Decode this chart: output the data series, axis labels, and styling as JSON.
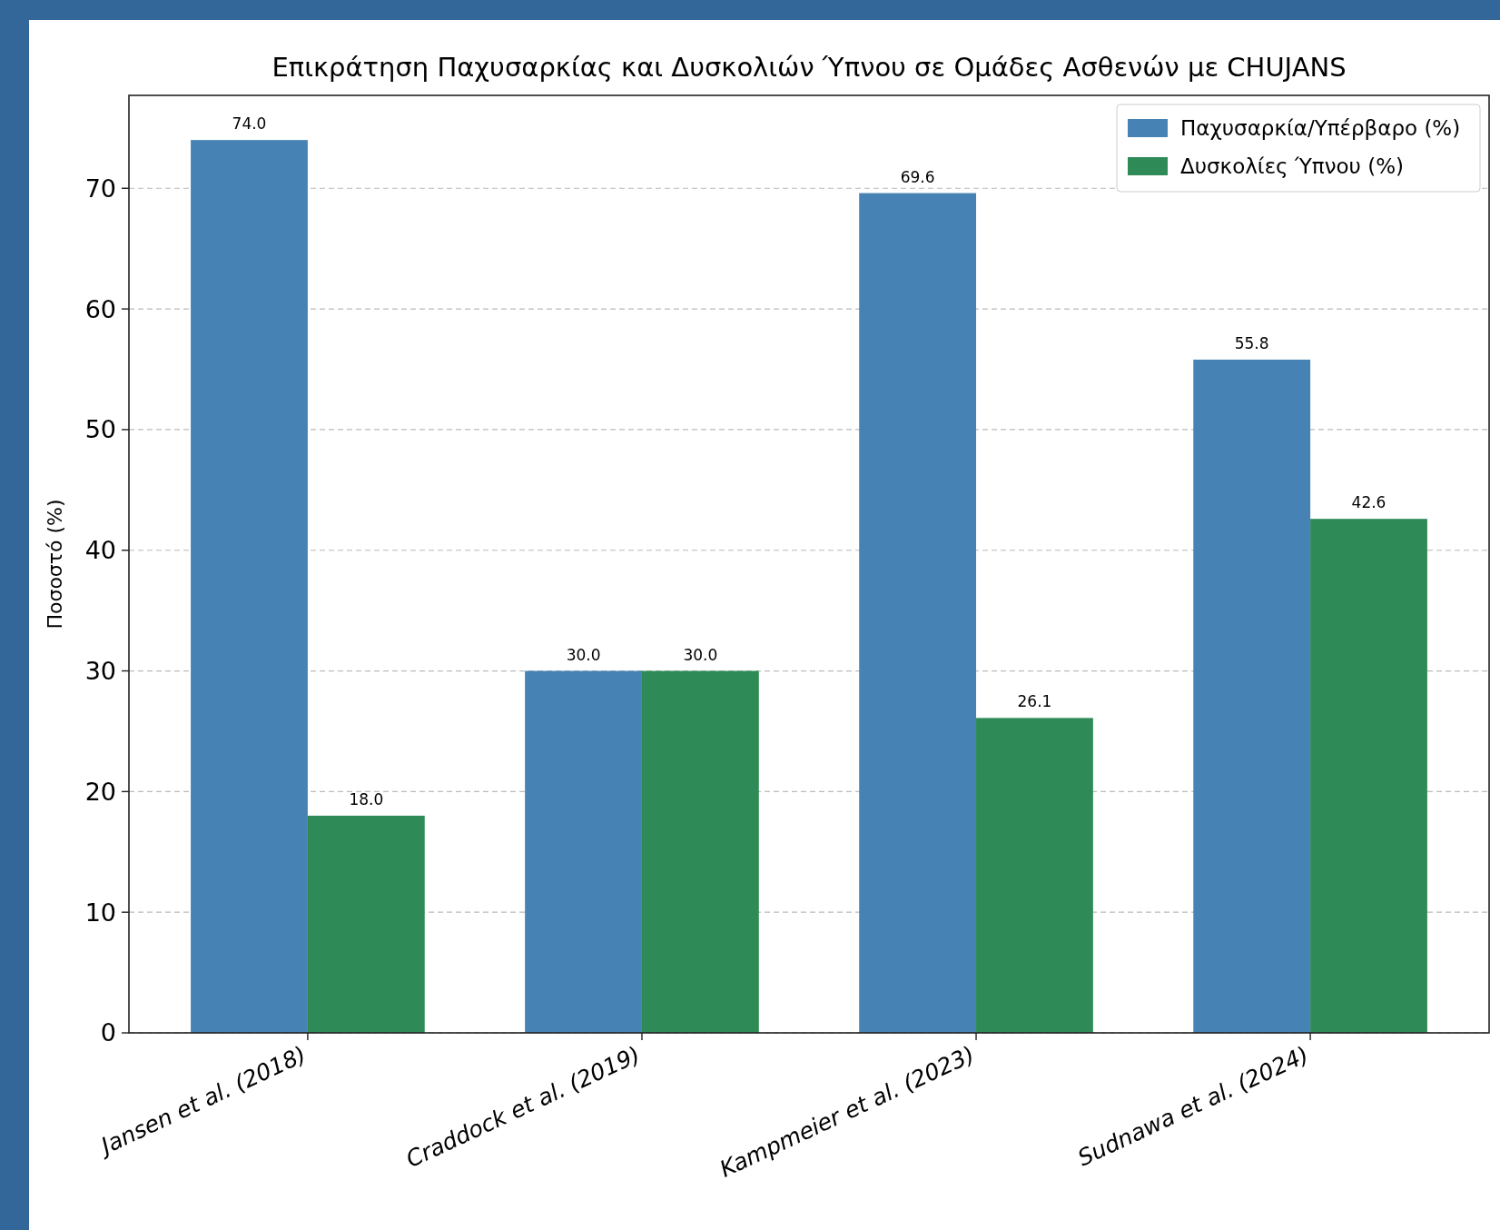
{
  "chart_data": {
    "type": "bar",
    "title": "Επικράτηση Παχυσαρκίας και Δυσκολιών Ύπνου σε Ομάδες Ασθενών με CHUJANS",
    "ylabel": "Ποσοστό (%)",
    "categories": [
      "Jansen et al. (2018)",
      "Craddock et al. (2019)",
      "Kampmeier et al. (2023)",
      "Sudnawa et al. (2024)"
    ],
    "series": [
      {
        "name": "Παχυσαρκία/Υπέρβαρο (%)",
        "color": "#4682b4",
        "values": [
          74.0,
          30.0,
          69.6,
          55.8
        ],
        "value_labels": [
          "74.0",
          "30.0",
          "69.6",
          "55.8"
        ]
      },
      {
        "name": "Δυσκολίες Ύπνου (%)",
        "color": "#2e8b57",
        "values": [
          18.0,
          30.0,
          26.1,
          42.6
        ],
        "value_labels": [
          "18.0",
          "30.0",
          "26.1",
          "42.6"
        ]
      }
    ],
    "ylim": [
      0,
      77.7
    ],
    "yticks": [
      0,
      10,
      20,
      30,
      40,
      50,
      60,
      70
    ],
    "grid": "y",
    "legend": "top right"
  }
}
